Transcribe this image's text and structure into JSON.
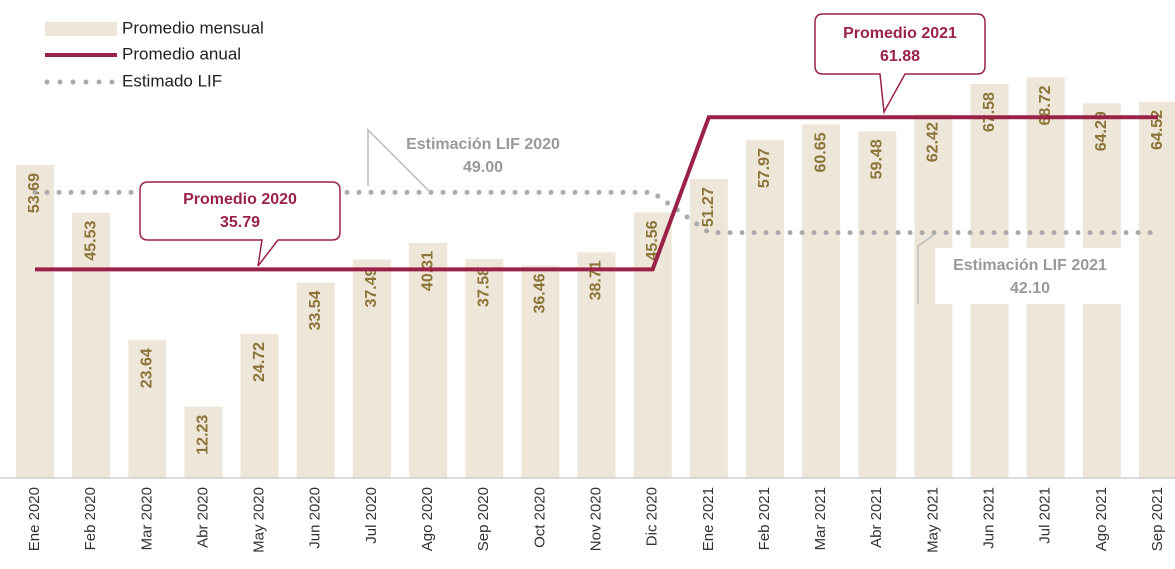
{
  "chart_data": {
    "type": "bar",
    "categories": [
      "Ene 2020",
      "Feb 2020",
      "Mar 2020",
      "Abr 2020",
      "May 2020",
      "Jun 2020",
      "Jul 2020",
      "Ago 2020",
      "Sep 2020",
      "Oct 2020",
      "Nov 2020",
      "Dic 2020",
      "Ene 2021",
      "Feb 2021",
      "Mar 2021",
      "Abr 2021",
      "May 2021",
      "Jun 2021",
      "Jul 2021",
      "Ago 2021",
      "Sep 2021"
    ],
    "series": [
      {
        "name": "Promedio mensual",
        "type": "bar",
        "color": "#eee6d8",
        "label_color": "#8a7438",
        "values": [
          53.69,
          45.53,
          23.64,
          12.23,
          24.72,
          33.54,
          37.49,
          40.31,
          37.58,
          36.46,
          38.71,
          45.56,
          51.27,
          57.97,
          60.65,
          59.48,
          62.42,
          67.58,
          68.72,
          64.29,
          64.52
        ]
      },
      {
        "name": "Promedio anual",
        "type": "line",
        "dashed": false,
        "color": "#9b2247",
        "values": [
          35.79,
          35.79,
          35.79,
          35.79,
          35.79,
          35.79,
          35.79,
          35.79,
          35.79,
          35.79,
          35.79,
          35.79,
          61.88,
          61.88,
          61.88,
          61.88,
          61.88,
          61.88,
          61.88,
          61.88,
          61.88
        ]
      },
      {
        "name": "Estimado LIF",
        "type": "line",
        "dashed": true,
        "color": "#aaaaaa",
        "values": [
          49.0,
          49.0,
          49.0,
          49.0,
          49.0,
          49.0,
          49.0,
          49.0,
          49.0,
          49.0,
          49.0,
          49.0,
          42.1,
          42.1,
          42.1,
          42.1,
          42.1,
          42.1,
          42.1,
          42.1,
          42.1
        ]
      }
    ],
    "ylim": [
      0,
      82
    ],
    "annotations": [
      {
        "lines": [
          "Promedio 2020",
          "35.79"
        ]
      },
      {
        "lines": [
          "Promedio 2021",
          "61.88"
        ]
      },
      {
        "lines": [
          "Estimación  LIF 2020",
          "49.00"
        ]
      },
      {
        "lines": [
          "Estimación  LIF 2021",
          "42.10"
        ]
      }
    ]
  }
}
